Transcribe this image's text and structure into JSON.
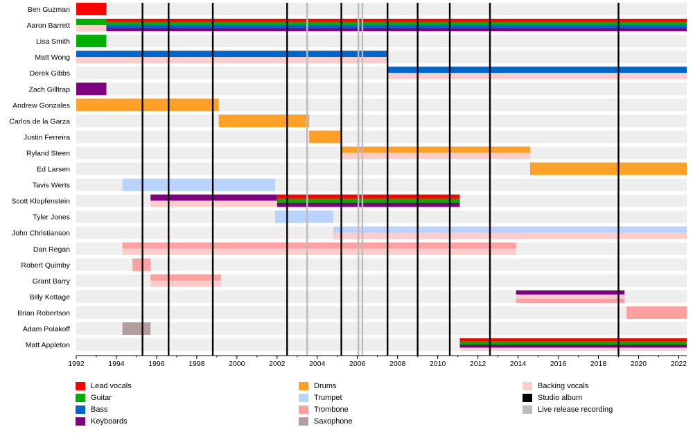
{
  "chart_data": {
    "type": "timeline",
    "x_start": 1992,
    "x_end": 2022.4,
    "x_ticks": [
      "1992",
      "1994",
      "1996",
      "1998",
      "2000",
      "2002",
      "2004",
      "2006",
      "2008",
      "2010",
      "2012",
      "2014",
      "2016",
      "2018",
      "2020",
      "2022"
    ],
    "roles": {
      "lead_vocals": {
        "label": "Lead vocals",
        "color": "#ff0000"
      },
      "guitar": {
        "label": "Guitar",
        "color": "#00b000"
      },
      "bass": {
        "label": "Bass",
        "color": "#0066cc"
      },
      "keyboards": {
        "label": "Keyboards",
        "color": "#800080"
      },
      "drums": {
        "label": "Drums",
        "color": "#ffa126"
      },
      "trumpet": {
        "label": "Trumpet",
        "color": "#b9d3ff"
      },
      "trombone": {
        "label": "Trombone",
        "color": "#ff9f9f"
      },
      "saxophone": {
        "label": "Saxophone",
        "color": "#b49d9d"
      },
      "backing_vocals": {
        "label": "Backing vocals",
        "color": "#ffcccc"
      },
      "studio_album": {
        "label": "Studio album",
        "color": "#000000"
      },
      "live_release": {
        "label": "Live release recording",
        "color": "#bbbbbb"
      }
    },
    "studio_albums": [
      1995.3,
      1996.6,
      1998.8,
      2002.5,
      2005.2,
      2007.5,
      2009.0,
      2010.6,
      2012.6,
      2019.0
    ],
    "live_releases": [
      2003.5,
      2006.05,
      2006.25
    ],
    "members": [
      {
        "name": "Ben Guzman",
        "spans": [
          {
            "start": 1992.0,
            "end": 1993.5,
            "roles": [
              "lead_vocals"
            ]
          }
        ]
      },
      {
        "name": "Aaron Barrett",
        "spans": [
          {
            "start": 1992.0,
            "end": 1993.5,
            "roles": [
              "guitar",
              "backing_vocals"
            ]
          },
          {
            "start": 1993.5,
            "end": 2022.4,
            "roles": [
              "lead_vocals",
              "guitar",
              "bass",
              "keyboards"
            ]
          }
        ]
      },
      {
        "name": "Lisa Smith",
        "spans": [
          {
            "start": 1992.0,
            "end": 1993.5,
            "roles": [
              "guitar"
            ]
          }
        ]
      },
      {
        "name": "Matt Wong",
        "spans": [
          {
            "start": 1992.0,
            "end": 2007.5,
            "roles": [
              "bass",
              "backing_vocals"
            ]
          }
        ]
      },
      {
        "name": "Derek Gibbs",
        "spans": [
          {
            "start": 2007.5,
            "end": 2022.4,
            "roles": [
              "bass",
              "backing_vocals"
            ]
          }
        ]
      },
      {
        "name": "Zach Gilltrap",
        "spans": [
          {
            "start": 1992.0,
            "end": 1993.5,
            "roles": [
              "keyboards"
            ]
          }
        ]
      },
      {
        "name": "Andrew Gonzales",
        "spans": [
          {
            "start": 1992.0,
            "end": 1999.1,
            "roles": [
              "drums"
            ]
          }
        ]
      },
      {
        "name": "Carlos de la Garza",
        "spans": [
          {
            "start": 1999.1,
            "end": 2003.6,
            "roles": [
              "drums"
            ]
          }
        ]
      },
      {
        "name": "Justin Ferreira",
        "spans": [
          {
            "start": 2003.6,
            "end": 2005.2,
            "roles": [
              "drums"
            ]
          }
        ]
      },
      {
        "name": "Ryland Steen",
        "spans": [
          {
            "start": 2005.2,
            "end": 2014.6,
            "roles": [
              "drums",
              "backing_vocals"
            ]
          }
        ]
      },
      {
        "name": "Ed Larsen",
        "spans": [
          {
            "start": 2014.6,
            "end": 2022.4,
            "roles": [
              "drums"
            ]
          }
        ]
      },
      {
        "name": "Tavis Werts",
        "spans": [
          {
            "start": 1994.3,
            "end": 2001.9,
            "roles": [
              "trumpet"
            ]
          }
        ]
      },
      {
        "name": "Scott Klopfenstein",
        "spans": [
          {
            "start": 1995.7,
            "end": 2002.0,
            "roles": [
              "keyboards",
              "backing_vocals"
            ]
          },
          {
            "start": 2002.0,
            "end": 2011.1,
            "roles": [
              "lead_vocals",
              "guitar",
              "keyboards"
            ]
          }
        ]
      },
      {
        "name": "Tyler Jones",
        "spans": [
          {
            "start": 2001.9,
            "end": 2004.8,
            "roles": [
              "trumpet"
            ]
          }
        ]
      },
      {
        "name": "John Christianson",
        "spans": [
          {
            "start": 2004.8,
            "end": 2022.4,
            "roles": [
              "trumpet",
              "backing_vocals"
            ]
          }
        ]
      },
      {
        "name": "Dan Regan",
        "spans": [
          {
            "start": 1994.3,
            "end": 2013.9,
            "roles": [
              "trombone",
              "backing_vocals"
            ]
          }
        ]
      },
      {
        "name": "Robert Quimby",
        "spans": [
          {
            "start": 1994.8,
            "end": 1995.7,
            "roles": [
              "trombone"
            ]
          }
        ]
      },
      {
        "name": "Grant Barry",
        "spans": [
          {
            "start": 1995.7,
            "end": 1999.2,
            "roles": [
              "trombone",
              "backing_vocals"
            ]
          }
        ]
      },
      {
        "name": "Billy Kottage",
        "spans": [
          {
            "start": 2013.9,
            "end": 2019.3,
            "roles": [
              "keyboards",
              "backing_vocals",
              "trombone"
            ]
          }
        ]
      },
      {
        "name": "Brian Robertson",
        "spans": [
          {
            "start": 2019.4,
            "end": 2022.4,
            "roles": [
              "trombone"
            ]
          }
        ]
      },
      {
        "name": "Adam Polakoff",
        "spans": [
          {
            "start": 1994.3,
            "end": 1995.7,
            "roles": [
              "saxophone"
            ]
          }
        ]
      },
      {
        "name": "Matt Appleton",
        "spans": [
          {
            "start": 2011.1,
            "end": 2022.4,
            "roles": [
              "lead_vocals",
              "guitar",
              "keyboards",
              "backing_vocals"
            ]
          }
        ]
      }
    ],
    "legend_columns": [
      [
        "lead_vocals",
        "guitar",
        "bass",
        "keyboards"
      ],
      [
        "drums",
        "trumpet",
        "trombone",
        "saxophone"
      ],
      [
        "backing_vocals",
        "studio_album",
        "live_release"
      ]
    ]
  }
}
